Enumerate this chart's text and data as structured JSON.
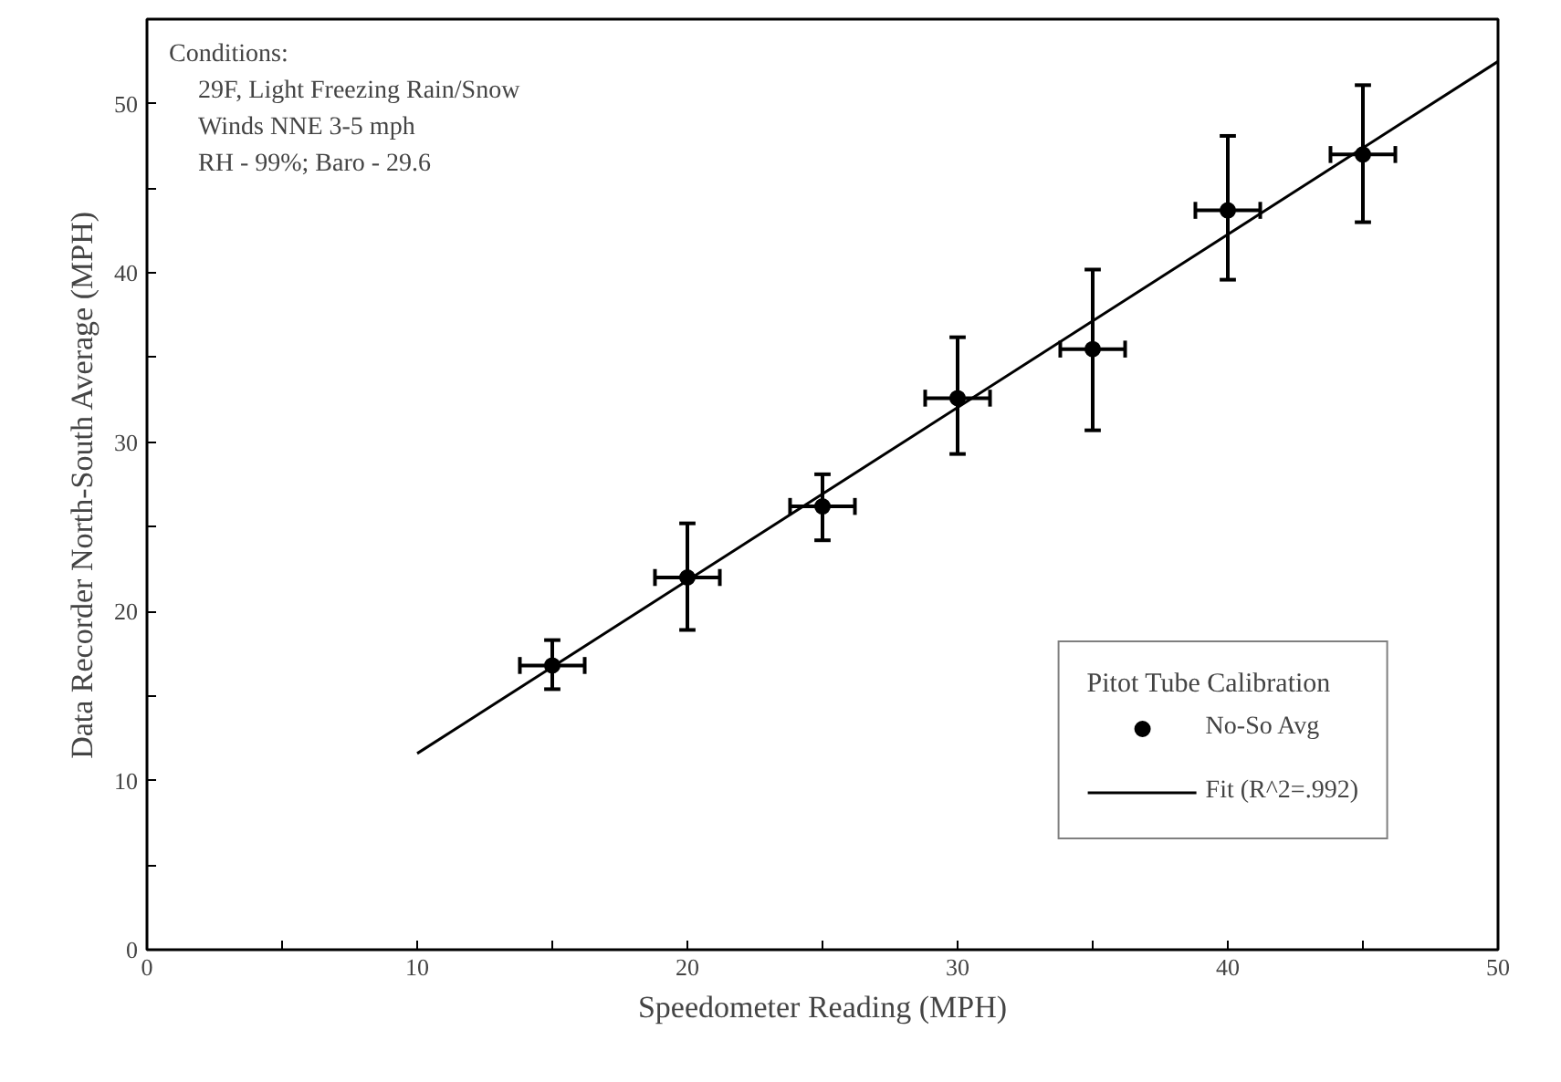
{
  "chart_data": {
    "type": "scatter",
    "xlabel": "Speedometer Reading (MPH)",
    "ylabel": "Data Recorder North-South Average (MPH)",
    "legend_title": "Pitot Tube Calibration",
    "annotations": [
      "Conditions:",
      "29F, Light Freezing Rain/Snow",
      "Winds NNE 3-5 mph",
      "RH - 99%; Baro - 29.6"
    ],
    "series": [
      {
        "name": "No-So Avg",
        "color": "#000000",
        "marker": "circle",
        "x": [
          15,
          20,
          25,
          30,
          35,
          40,
          45
        ],
        "values": [
          16.8,
          22,
          26.2,
          32.6,
          35.5,
          43.7,
          47
        ],
        "errors": [
          [
            15.4,
            18.3
          ],
          [
            18.9,
            25.2
          ],
          [
            24.2,
            28.1
          ],
          [
            29.3,
            36.2
          ],
          [
            30.7,
            40.2
          ],
          [
            39.6,
            48.1
          ],
          [
            43,
            51.1
          ]
        ],
        "xerrors": [
          1.2,
          1.2,
          1.2,
          1.2,
          1.2,
          1.2,
          1.2
        ]
      },
      {
        "name": "Fit (R^2=.992)",
        "type": "line",
        "color": "#000000",
        "line_style": "solid",
        "x": [
          10,
          50
        ],
        "values": [
          11.6,
          52.5
        ]
      }
    ],
    "xlim": [
      0,
      50
    ],
    "ylim": [
      0,
      55
    ],
    "xticks": [
      0,
      {
        "value": 5,
        "label": null
      },
      10,
      {
        "value": 15,
        "label": null
      },
      20,
      {
        "value": 25,
        "label": null
      },
      30,
      {
        "value": 35,
        "label": null
      },
      40,
      {
        "value": 45,
        "label": null
      },
      50
    ],
    "yticks": [
      0,
      {
        "value": 5,
        "label": null
      },
      10,
      {
        "value": 15,
        "label": null
      },
      20,
      {
        "value": 25,
        "label": null
      },
      30,
      {
        "value": 35,
        "label": null
      },
      40,
      {
        "value": 45,
        "label": null
      },
      50,
      {
        "value": 55,
        "label": null
      }
    ],
    "grid": false,
    "legend": "bottom right"
  }
}
